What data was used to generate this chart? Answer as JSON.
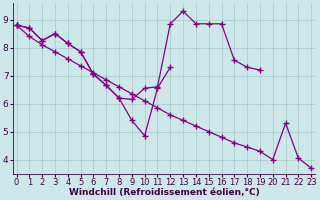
{
  "xlabel": "Windchill (Refroidissement éolien,°C)",
  "background_color": "#cce8e8",
  "grid_color": "#aacfcf",
  "line_color": "#880088",
  "x_hours": [
    0,
    1,
    2,
    3,
    4,
    5,
    6,
    7,
    8,
    9,
    10,
    11,
    12,
    13,
    14,
    15,
    16,
    17,
    18,
    19,
    20,
    21,
    22,
    23
  ],
  "series1_y": [
    8.8,
    8.7,
    8.25,
    8.5,
    8.15,
    7.85,
    7.05,
    6.65,
    6.2,
    6.15,
    6.55,
    6.6,
    8.85,
    9.3,
    8.85,
    8.85,
    8.85,
    7.55,
    7.3,
    7.2,
    null,
    null,
    null,
    null
  ],
  "series2_y": [
    8.8,
    8.7,
    8.25,
    8.5,
    8.15,
    7.85,
    7.05,
    6.65,
    6.2,
    5.4,
    4.85,
    6.55,
    7.3,
    null,
    null,
    null,
    null,
    null,
    null,
    null,
    null,
    null,
    null,
    null
  ],
  "series3_y": [
    8.8,
    8.4,
    8.1,
    7.85,
    7.6,
    7.35,
    7.1,
    6.85,
    6.6,
    6.35,
    6.1,
    5.85,
    5.6,
    5.4,
    5.2,
    5.0,
    4.8,
    4.6,
    4.45,
    4.3,
    4.0,
    5.3,
    4.05,
    3.7
  ],
  "ylim": [
    3.5,
    9.6
  ],
  "yticks": [
    4,
    5,
    6,
    7,
    8,
    9
  ],
  "xticks": [
    0,
    1,
    2,
    3,
    4,
    5,
    6,
    7,
    8,
    9,
    10,
    11,
    12,
    13,
    14,
    15,
    16,
    17,
    18,
    19,
    20,
    21,
    22,
    23
  ],
  "marker": "+",
  "markersize": 4,
  "linewidth": 0.9,
  "fontsize_label": 6.5,
  "fontsize_tick": 6.0
}
